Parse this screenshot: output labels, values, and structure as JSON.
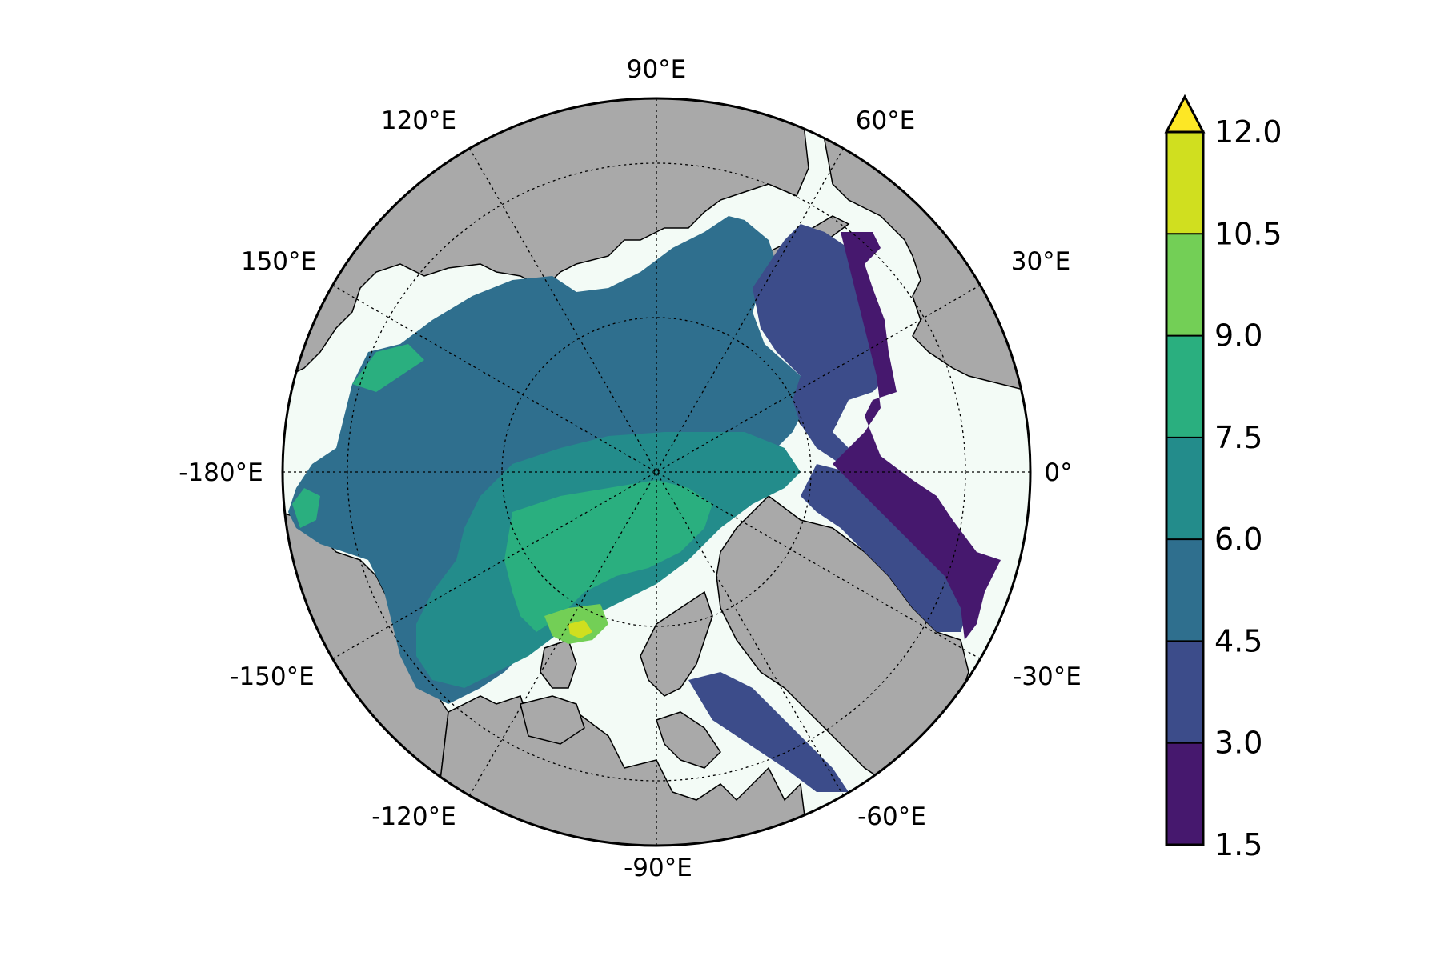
{
  "map": {
    "projection": "north-polar-stereographic",
    "land_color": "#a9a9a9",
    "ice_free_color": "#f3fbf6",
    "meridian_labels": [
      "90°E",
      "60°E",
      "30°E",
      "0°",
      "-30°E",
      "-60°E",
      "-90°E",
      "-120°E",
      "-150°E",
      "-180°E",
      "150°E",
      "120°E"
    ]
  },
  "colorbar": {
    "tick_labels": [
      "12.0",
      "10.5",
      "9.0",
      "7.5",
      "6.0",
      "4.5",
      "3.0",
      "1.5"
    ],
    "levels": [
      1.5,
      3.0,
      4.5,
      6.0,
      7.5,
      9.0,
      10.5,
      12.0
    ],
    "band_colors": [
      "#46186e",
      "#3c4c8a",
      "#2f6f8e",
      "#238c8b",
      "#2aaf7f",
      "#73cf56",
      "#d0df1f"
    ],
    "extend_max_color": "#fde725"
  }
}
